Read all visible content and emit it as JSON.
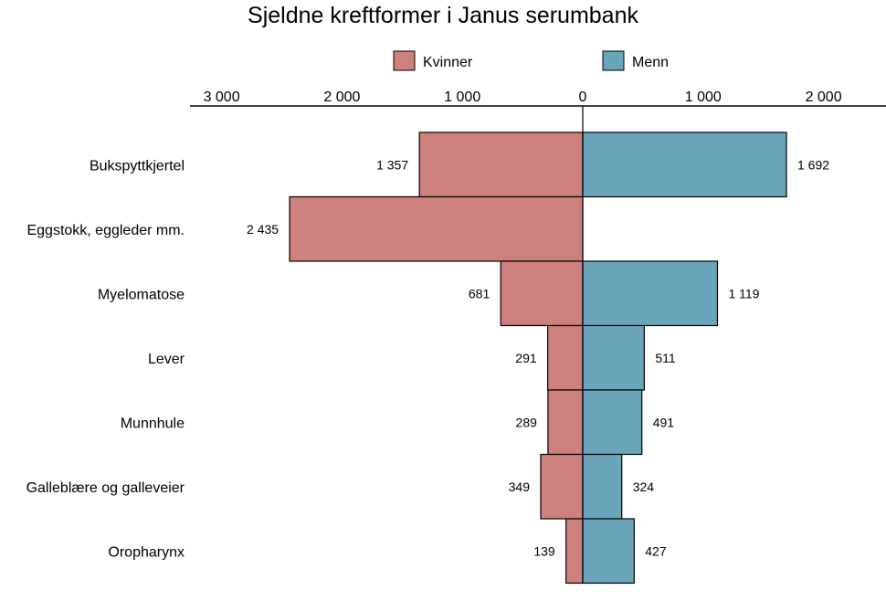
{
  "chart_data": {
    "type": "bar",
    "orientation": "horizontal-diverging",
    "title": "Sjeldne kreftformer i Janus serumbank",
    "categories": [
      "Bukspyttkjertel",
      "Eggstokk, eggleder mm.",
      "Myelomatose",
      "Lever",
      "Munnhule",
      "Galleblære og galleveier",
      "Oropharynx"
    ],
    "series": [
      {
        "name": "Kvinner",
        "color": "#cd817d",
        "direction": "left",
        "values": [
          1357,
          2435,
          681,
          291,
          289,
          349,
          139
        ],
        "value_labels": [
          "1 357",
          "2 435",
          "681",
          "291",
          "289",
          "349",
          "139"
        ]
      },
      {
        "name": "Menn",
        "color": "#6aa6bb",
        "direction": "right",
        "values": [
          1692,
          null,
          1119,
          511,
          491,
          324,
          427
        ],
        "value_labels": [
          "1 692",
          "",
          "1 119",
          "511",
          "491",
          "324",
          "427"
        ]
      }
    ],
    "xaxis": {
      "position": "top",
      "range": [
        -3000,
        2500
      ],
      "ticks": [
        -3000,
        -2000,
        -1000,
        0,
        1000,
        2000
      ],
      "tick_labels": [
        "3 000",
        "2 000",
        "1 000",
        "0",
        "1 000",
        "2 000"
      ]
    },
    "legend": {
      "placement": "top"
    },
    "grid": false
  }
}
